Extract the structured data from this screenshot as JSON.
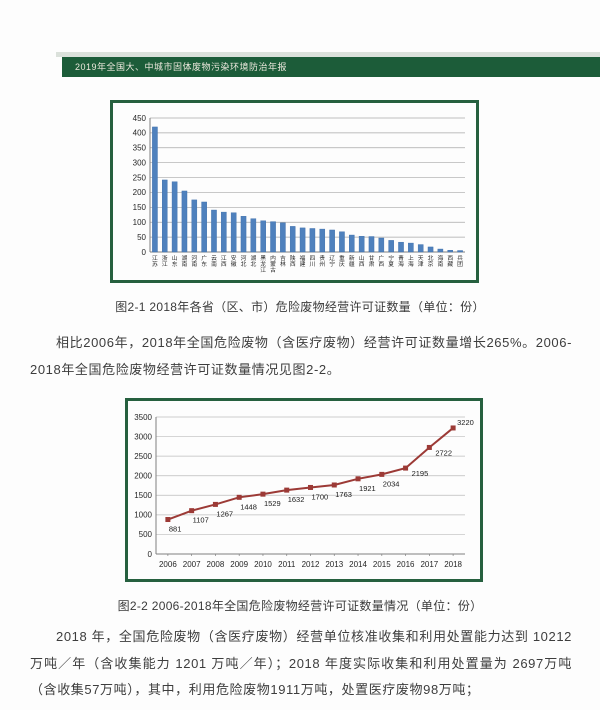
{
  "header": {
    "title": "2019年全国大、中城市固体废物污染环境防治年报"
  },
  "figures": {
    "fig1": {
      "caption": "图2-1 2018年各省（区、市）危险废物经营许可证数量（单位：份）"
    },
    "fig2": {
      "caption": "图2-2 2006-2018年全国危险废物经营许可证数量情况（单位：份）"
    }
  },
  "paragraphs": {
    "p1": "相比2006年，2018年全国危险废物（含医疗废物）经营许可证数量增长265%。2006-2018年全国危险废物经营许可证数量情况见图2-2。",
    "p2": "2018 年，全国危险废物（含医疗废物）经营单位核准收集和利用处置能力达到 10212 万吨／年（含收集能力 1201 万吨／年）；2018 年度实际收集和利用处置量为 2697万吨（含收集57万吨），其中，利用危险废物1911万吨，处置医疗废物98万吨；"
  },
  "colors": {
    "header_green": "#1c5c39",
    "border_green": "#26603f",
    "bar_blue": "#4f81bd",
    "line_red": "#9c3a36",
    "grid_gray": "#a8a8a8",
    "axis_gray": "#7f7f7f",
    "label_dark": "#262626"
  },
  "chart_data": [
    {
      "type": "bar",
      "title": "",
      "xlabel": "",
      "ylabel": "",
      "categories": [
        "江苏",
        "浙江",
        "山东",
        "湖南",
        "河南",
        "广东",
        "云南",
        "江西",
        "安徽",
        "河北",
        "湖北",
        "黑龙江",
        "内蒙古",
        "吉林",
        "陕西",
        "福建",
        "四川",
        "贵州",
        "辽宁",
        "重庆",
        "新疆",
        "山西",
        "甘肃",
        "广西",
        "宁夏",
        "青海",
        "上海",
        "天津",
        "北京",
        "海南",
        "西藏",
        "兵团"
      ],
      "values": [
        420,
        242,
        236,
        205,
        175,
        168,
        141,
        134,
        132,
        120,
        112,
        105,
        102,
        98,
        86,
        81,
        79,
        77,
        74,
        68,
        57,
        53,
        52,
        47,
        39,
        33,
        30,
        25,
        17,
        10,
        6,
        5
      ],
      "ylim": [
        0,
        450
      ],
      "ytick_step": 50,
      "grid": true,
      "legend": "none"
    },
    {
      "type": "line",
      "title": "",
      "xlabel": "",
      "ylabel": "",
      "x": [
        2006,
        2007,
        2008,
        2009,
        2010,
        2011,
        2012,
        2013,
        2014,
        2015,
        2016,
        2017,
        2018
      ],
      "values": [
        881,
        1107,
        1267,
        1448,
        1529,
        1632,
        1700,
        1763,
        1921,
        2034,
        2195,
        2722,
        3220
      ],
      "ylim": [
        0,
        3500
      ],
      "ytick_step": 500,
      "grid": true,
      "legend": "none",
      "marker": "square",
      "data_labels": true
    }
  ]
}
